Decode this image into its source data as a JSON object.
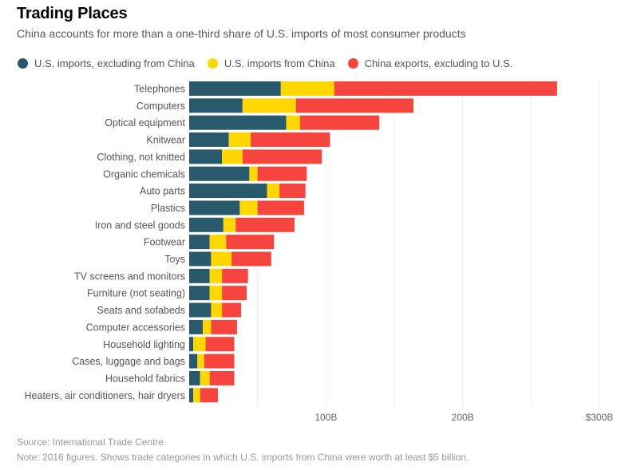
{
  "header": {
    "title": "Trading Places",
    "subtitle": "China accounts for more than a one-third share of U.S. imports of most consumer products"
  },
  "footer": {
    "source": "Source: International Trade Centre",
    "note": "Note: 2016 figures. Shows trade categories in which U.S. imports from China were worth at least $5 billion."
  },
  "chart_data": {
    "type": "bar",
    "orientation": "horizontal",
    "stacked": true,
    "title": "Trading Places",
    "subtitle": "China accounts for more than a one-third share of U.S. imports of most consumer products",
    "xlabel": "",
    "ylabel": "",
    "units": "USD billions",
    "xlim": [
      0,
      300
    ],
    "grid": true,
    "grid_step": 50,
    "legend_position": "top-left",
    "x_ticks": [
      {
        "value": 100,
        "label": "100B"
      },
      {
        "value": 200,
        "label": "200B"
      },
      {
        "value": 300,
        "label": "$300B"
      }
    ],
    "categories": [
      "Telephones",
      "Computers",
      "Optical equipment",
      "Knitwear",
      "Clothing, not knitted",
      "Organic chemicals",
      "Auto parts",
      "Plastics",
      "Iron and steel goods",
      "Footwear",
      "Toys",
      "TV screens and monitors",
      "Furniture (not seating)",
      "Seats and sofabeds",
      "Computer accessories",
      "Household lighting",
      "Cases, luggage and bags",
      "Household fabrics",
      "Heaters, air conditioners, hair dryers"
    ],
    "series": [
      {
        "name": "U.S. imports, excluding from China",
        "color": "#285a6c",
        "values": [
          67,
          39,
          71,
          29,
          24,
          44,
          57,
          37,
          25,
          15,
          16,
          15,
          15,
          16,
          10,
          3,
          6,
          8,
          3
        ]
      },
      {
        "name": "U.S. imports from China",
        "color": "#fed700",
        "values": [
          39,
          39,
          10,
          16,
          15,
          6,
          9,
          13,
          9,
          12,
          15,
          9,
          9,
          8,
          6,
          9,
          5,
          7,
          5
        ]
      },
      {
        "name": "China exports, excluding to U.S.",
        "color": "#f6453e",
        "values": [
          163,
          86,
          58,
          58,
          58,
          36,
          19,
          34,
          43,
          35,
          29,
          19,
          18,
          14,
          19,
          21,
          22,
          18,
          13
        ]
      }
    ]
  }
}
